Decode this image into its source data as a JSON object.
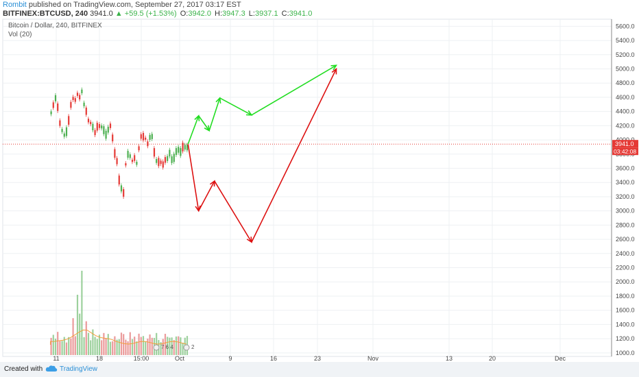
{
  "header": {
    "author": "Rombit",
    "published": "published on TradingView.com, September 27, 2017 03:17 EST",
    "symbol": "BITFINEX:BTCUSD, 240",
    "last": "3941.0",
    "change": "▲ +59.5 (+1.53%)",
    "open_label": "O:",
    "open": "3942.0",
    "high_label": "H:",
    "high": "3947.3",
    "low_label": "L:",
    "low": "3937.1",
    "close_label": "C:",
    "close": "3941.0"
  },
  "chart_title": "Bitcoin / Dollar, 240, BITFINEX",
  "volume_label": "Vol (20)",
  "price_tag": "3941.0",
  "countdown_tag": "03:42:08",
  "event_badges": [
    "7 6 4",
    "2"
  ],
  "footer": {
    "created": "Created with",
    "brand": "TradingView"
  },
  "colors": {
    "up": "#4caf50",
    "down": "#e53935",
    "projection_up": "#22dd22",
    "projection_down": "#dd1111",
    "last_price": "#e53935",
    "grid": "#eef0f3",
    "volume_ma": "#f29d38"
  },
  "chart_data": {
    "type": "candlestick",
    "title": "Bitcoin / Dollar, 240, BITFINEX",
    "y_ticks": [
      1000,
      1200,
      1400,
      1600,
      1800,
      2000,
      2200,
      2400,
      2600,
      2800,
      3000,
      3200,
      3400,
      3600,
      3800,
      4000,
      4200,
      4400,
      4600,
      4800,
      5000,
      5200,
      5400,
      5600
    ],
    "y_range": [
      950,
      5700
    ],
    "x_ticks": [
      "11",
      "18",
      "15:00",
      "Oct",
      "9",
      "16",
      "23",
      "Nov",
      "13",
      "20",
      "Dec"
    ],
    "last_price": 3941.0,
    "price_path": [
      [
        "2017-09-01",
        4380
      ],
      [
        "2017-09-02",
        4560
      ],
      [
        "2017-09-03",
        4100
      ],
      [
        "2017-09-04",
        4050
      ],
      [
        "2017-09-05",
        4600
      ],
      [
        "2017-09-06",
        4650
      ],
      [
        "2017-09-07",
        4620
      ],
      [
        "2017-09-08",
        4300
      ],
      [
        "2017-09-09",
        4150
      ],
      [
        "2017-09-10",
        4200
      ],
      [
        "2017-09-11",
        4100
      ],
      [
        "2017-09-12",
        4200
      ],
      [
        "2017-09-13",
        3850
      ],
      [
        "2017-09-14",
        3350
      ],
      [
        "2017-09-15",
        3200
      ],
      [
        "2017-09-15",
        3700
      ],
      [
        "2017-09-16",
        3800
      ],
      [
        "2017-09-17",
        3650
      ],
      [
        "2017-09-18",
        4050
      ],
      [
        "2017-09-19",
        3950
      ],
      [
        "2017-09-20",
        4000
      ],
      [
        "2017-09-21",
        3700
      ],
      [
        "2017-09-22",
        3600
      ],
      [
        "2017-09-23",
        3800
      ],
      [
        "2017-09-24",
        3700
      ],
      [
        "2017-09-25",
        3900
      ],
      [
        "2017-09-26",
        3890
      ],
      [
        "2017-09-27",
        3941
      ]
    ],
    "projection_bullish": [
      [
        "2017-09-27",
        3941
      ],
      [
        "2017-09-29",
        4340
      ],
      [
        "2017-10-01",
        4130
      ],
      [
        "2017-10-03",
        4590
      ],
      [
        "2017-10-09",
        4350
      ],
      [
        "2017-10-25",
        5050
      ]
    ],
    "projection_bearish": [
      [
        "2017-09-27",
        3941
      ],
      [
        "2017-09-29",
        3000
      ],
      [
        "2017-10-02",
        3420
      ],
      [
        "2017-10-09",
        2560
      ],
      [
        "2017-10-25",
        5000
      ]
    ],
    "volume_ma": "Vol (20)",
    "grid": true,
    "legend": "top-left"
  }
}
